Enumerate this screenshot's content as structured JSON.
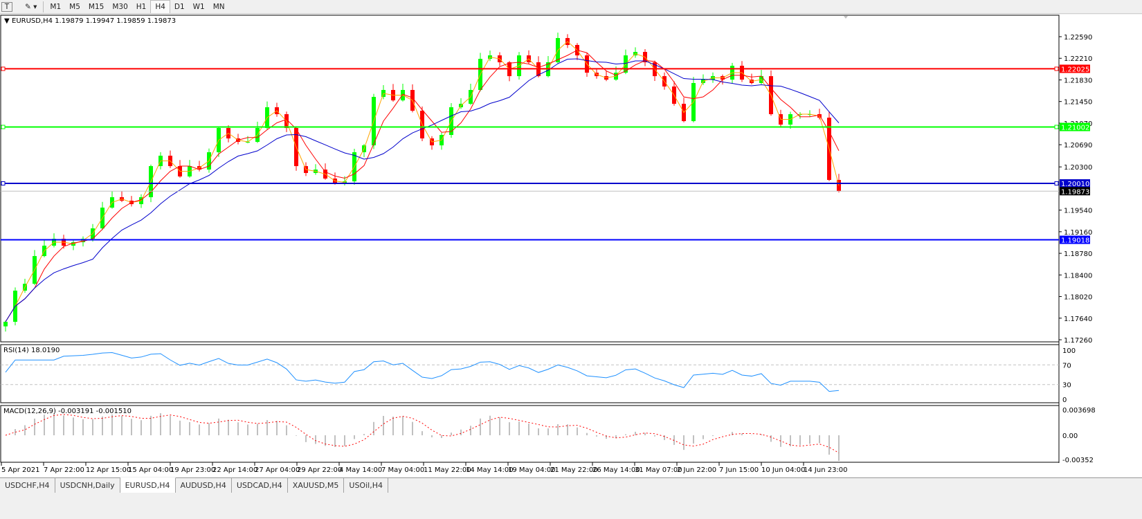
{
  "toolbar": {
    "text_tool": "T",
    "timeframes": [
      "M1",
      "M5",
      "M15",
      "M30",
      "H1",
      "H4",
      "D1",
      "W1",
      "MN"
    ],
    "active_timeframe": "H4"
  },
  "chart": {
    "header": "EURUSD,H4  1.19879 1.19947 1.19859 1.19873",
    "price_ticks": [
      "1.22590",
      "1.22210",
      "1.21830",
      "1.21450",
      "1.21070",
      "1.20690",
      "1.20300",
      "1.19540",
      "1.19160",
      "1.18780",
      "1.18400",
      "1.18020",
      "1.17640",
      "1.17260"
    ],
    "hlines": [
      {
        "price": "1.22025",
        "color": "#ff0000"
      },
      {
        "price": "1.21002",
        "color": "#00ff00"
      },
      {
        "price": "1.20010",
        "color": "#0000cc"
      },
      {
        "price": "1.19018",
        "color": "#0000ff"
      }
    ],
    "current_price": "1.19873",
    "colors": {
      "bull": "#00ff00",
      "bear": "#ff0000",
      "ma_fast": "#ffa500",
      "ma_mid": "#ff0000",
      "ma_slow": "#0000cc",
      "rsi": "#1e90ff",
      "macd_hist": "#c0c0c0",
      "macd_signal": "#ff0000"
    },
    "time_labels": [
      "5 Apr 2021",
      "7 Apr 22:00",
      "12 Apr 15:00",
      "15 Apr 04:00",
      "19 Apr 23:00",
      "22 Apr 14:00",
      "27 Apr 04:00",
      "29 Apr 22:00",
      "4 May 14:00",
      "7 May 04:00",
      "11 May 22:00",
      "14 May 14:00",
      "19 May 04:00",
      "21 May 22:00",
      "26 May 14:00",
      "31 May 07:00",
      "2 Jun 22:00",
      "7 Jun 15:00",
      "10 Jun 04:00",
      "14 Jun 23:00"
    ]
  },
  "rsi": {
    "label": "RSI(14) 18.0190",
    "ticks": [
      "100",
      "70",
      "30",
      "0"
    ]
  },
  "macd": {
    "label": "MACD(12,26,9) -0.003191 -0.001510",
    "ticks": [
      "0.003698",
      "0.00",
      "-0.00352"
    ]
  },
  "chart_data": {
    "type": "candlestick",
    "symbol": "EURUSD",
    "timeframe": "H4",
    "ylim": [
      1.1726,
      1.2259
    ],
    "closes": [
      1.17576,
      1.18124,
      1.18245,
      1.18732,
      1.18915,
      1.19036,
      1.18915,
      1.18976,
      1.19036,
      1.19219,
      1.19584,
      1.19767,
      1.19706,
      1.19645,
      1.19767,
      1.20314,
      1.20497,
      1.20314,
      1.20132,
      1.20314,
      1.20253,
      1.20558,
      1.20984,
      1.20801,
      1.2074,
      1.2074,
      1.20984,
      1.21349,
      1.21227,
      1.20984,
      1.20314,
      1.20193,
      1.20253,
      1.20095,
      1.2001,
      1.20046,
      1.20558,
      1.20679,
      1.21531,
      1.21653,
      1.2147,
      1.21653,
      1.21288,
      1.20801,
      1.20679,
      1.20862,
      1.21349,
      1.2141,
      1.21653,
      1.222,
      1.22261,
      1.2214,
      1.21896,
      1.22261,
      1.2214,
      1.21896,
      1.2214,
      1.22566,
      1.22444,
      1.22261,
      1.21957,
      1.21896,
      1.21835,
      1.21957,
      1.22261,
      1.22322,
      1.2214,
      1.21896,
      1.21714,
      1.2141,
      1.21105,
      1.21775,
      1.21835,
      1.21896,
      1.21835,
      1.22079,
      1.21835,
      1.21775,
      1.21896,
      1.21227,
      1.21044,
      1.21227,
      1.21227,
      1.21227,
      1.21166,
      1.20071,
      1.19873
    ]
  }
}
